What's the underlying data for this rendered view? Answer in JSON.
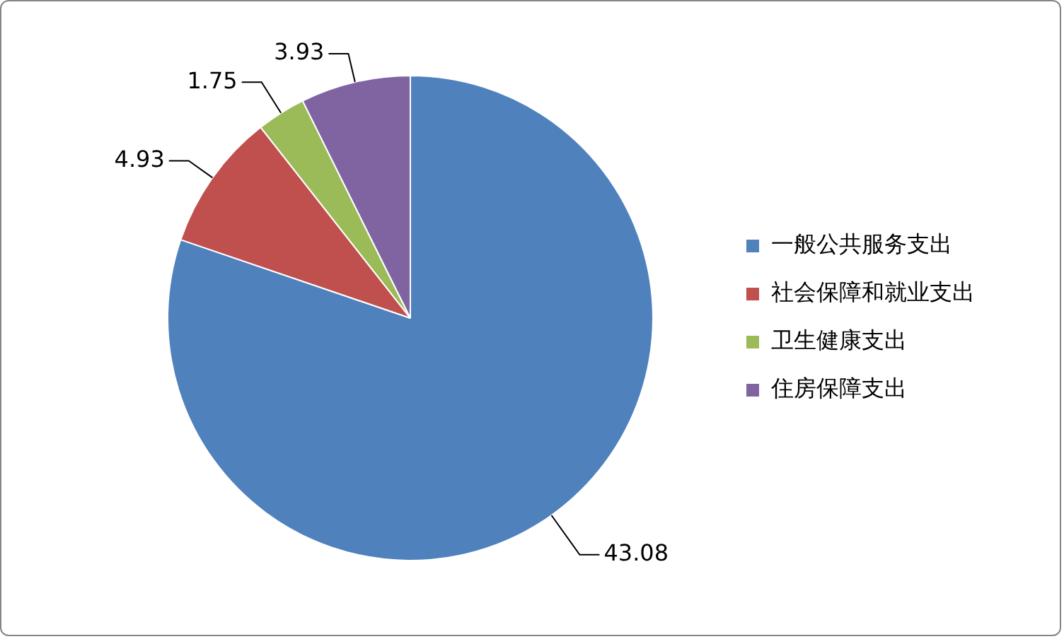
{
  "chart_data": {
    "type": "pie",
    "categories": [
      "一般公共服务支出",
      "社会保障和就业支出",
      "卫生健康支出",
      "住房保障支出"
    ],
    "values": [
      43.08,
      4.93,
      1.75,
      3.93
    ],
    "colors": [
      "#4f81bd",
      "#c0504d",
      "#9bbb59",
      "#8064a2"
    ],
    "data_labels": true,
    "legend": "right"
  }
}
